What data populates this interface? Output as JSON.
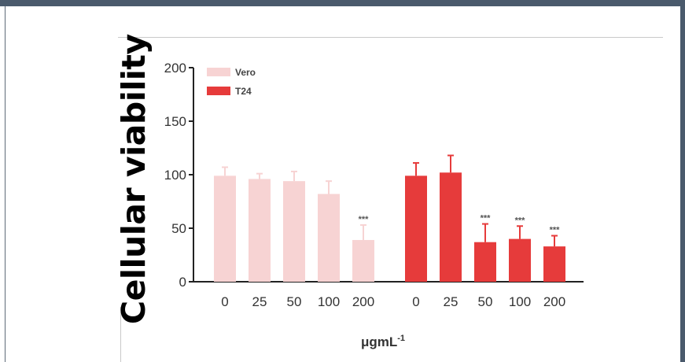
{
  "chart_data": {
    "type": "bar",
    "ylabel": "Cellular viability",
    "xlabel": "μgmL",
    "xlabel_superscript": "-1",
    "ylim": [
      0,
      200
    ],
    "yticks": [
      0,
      50,
      100,
      150,
      200
    ],
    "legend_position": "top-left",
    "grid": false,
    "significance_label": "***",
    "groups": [
      {
        "name": "Vero",
        "color": "#f7d3d3",
        "categories": [
          "0",
          "25",
          "50",
          "100",
          "200"
        ],
        "values": [
          99,
          96,
          94,
          82,
          39
        ],
        "errors": [
          8,
          5,
          9,
          12,
          14
        ],
        "significance": [
          "",
          "",
          "",
          "",
          "***"
        ]
      },
      {
        "name": "T24",
        "color": "#e63b3b",
        "categories": [
          "0",
          "25",
          "50",
          "100",
          "200"
        ],
        "values": [
          99,
          102,
          37,
          40,
          33
        ],
        "errors": [
          12,
          16,
          17,
          12,
          10
        ],
        "significance": [
          "",
          "",
          "***",
          "***",
          "***"
        ]
      }
    ]
  }
}
